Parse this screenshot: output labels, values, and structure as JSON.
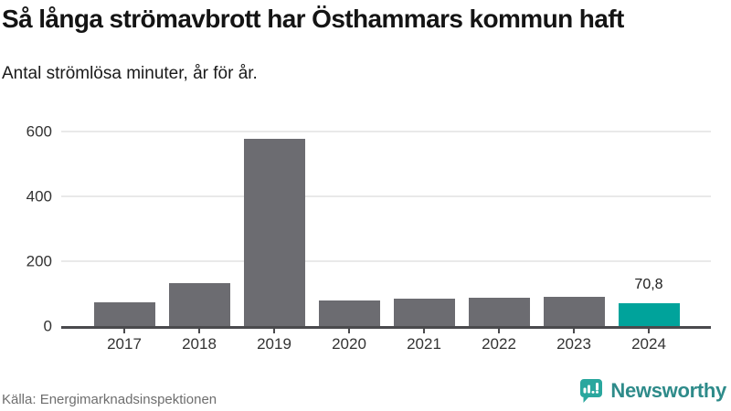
{
  "header": {
    "title": "Så långa strömavbrott har Östhammars kommun haft",
    "subtitle": "Antal strömlösa minuter, år för år."
  },
  "chart_data": {
    "type": "bar",
    "title": "Så långa strömavbrott har Östhammars kommun haft",
    "subtitle": "Antal strömlösa minuter, år för år.",
    "categories": [
      "2017",
      "2018",
      "2019",
      "2020",
      "2021",
      "2022",
      "2023",
      "2024"
    ],
    "values": [
      73,
      132,
      578,
      78,
      85,
      86,
      90,
      70.8
    ],
    "highlight_index": 7,
    "value_label": {
      "index": 7,
      "text": "70,8"
    },
    "yticks": [
      0,
      200,
      400,
      600
    ],
    "ylim": [
      0,
      620
    ],
    "grid": true,
    "legend": "none",
    "xlabel": "",
    "ylabel": "",
    "bar_color": "#6c6c71",
    "highlight_color": "#00a39b",
    "grid_color": "#e9e9e9",
    "axis_color": "#4a4a4d"
  },
  "footer": {
    "source": "Källa: Energimarknadsinspektionen",
    "brand": "Newsworthy",
    "brand_color": "#2e8b8a",
    "logo_bubble_color": "#2aa79e"
  }
}
